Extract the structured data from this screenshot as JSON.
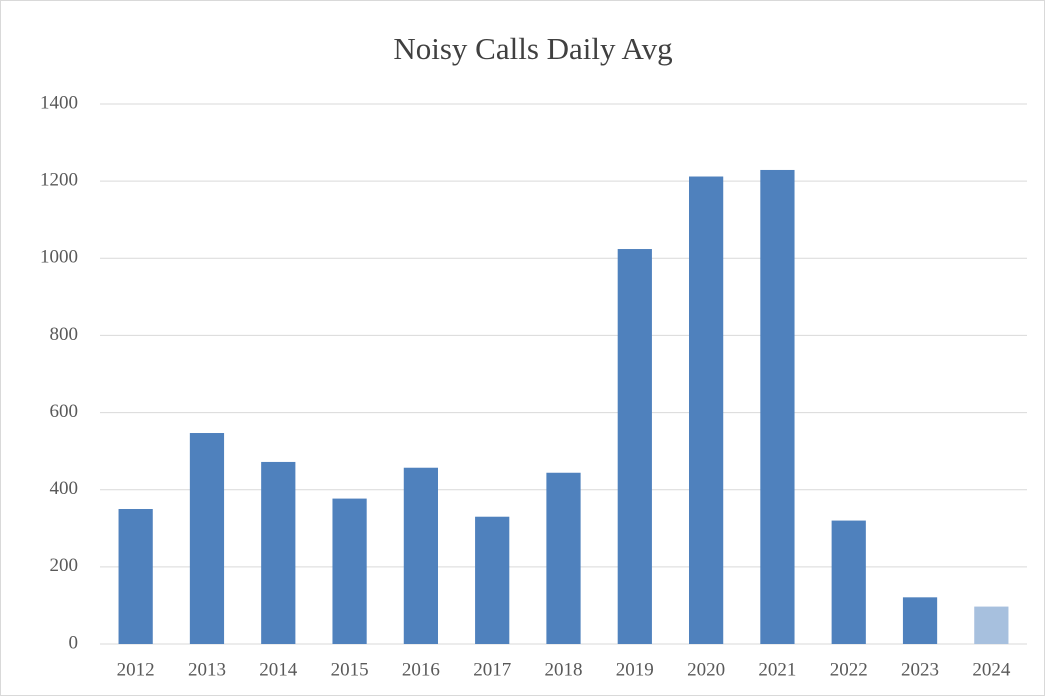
{
  "chart_data": {
    "type": "bar",
    "title": "Noisy Calls Daily Avg",
    "categories": [
      "2012",
      "2013",
      "2014",
      "2015",
      "2016",
      "2017",
      "2018",
      "2019",
      "2020",
      "2021",
      "2022",
      "2023",
      "2024"
    ],
    "values": [
      350,
      547,
      472,
      377,
      457,
      330,
      444,
      1024,
      1212,
      1229,
      320,
      121,
      97
    ],
    "colors": [
      "#4f81bd",
      "#4f81bd",
      "#4f81bd",
      "#4f81bd",
      "#4f81bd",
      "#4f81bd",
      "#4f81bd",
      "#4f81bd",
      "#4f81bd",
      "#4f81bd",
      "#4f81bd",
      "#4f81bd",
      "#a7c0de"
    ],
    "ylim": [
      0,
      1400
    ],
    "yticks": [
      0,
      200,
      400,
      600,
      800,
      1000,
      1200,
      1400
    ],
    "grid": true
  }
}
